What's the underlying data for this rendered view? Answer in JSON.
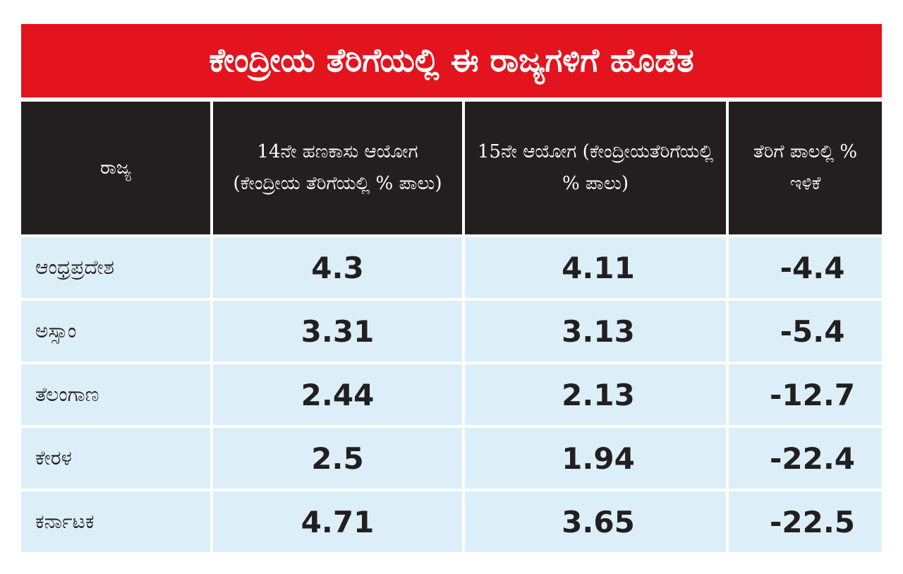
{
  "title": "ಕೇಂದ್ರೀಯ ತೆರಿಗೆಯಲ್ಲಿ ಈ ರಾಜ್ಯಗಳಿಗೆ ಹೊಡೆತ",
  "colors": {
    "title_bg": "#e3141e",
    "header_bg": "#231f20",
    "row_bg": "#dceff8"
  },
  "headers": [
    "ರಾಜ್ಯ",
    "14ನೇ ಹಣಕಾಸು ಆಯೋಗ (ಕೇಂದ್ರೀಯ ತೆರಿಗೆಯಲ್ಲಿ % ಪಾಲು)",
    "15ನೇ ಆಯೋಗ (ಕೇಂದ್ರೀಯತೆರಿಗೆಯಲ್ಲಿ % ಪಾಲು)",
    "ತೆರಿಗೆ ಪಾಲಲ್ಲಿ % ಇಳಿಕೆ"
  ],
  "rows": [
    [
      "ಆಂಧ್ರಪ್ರದೇಶ",
      "4.3",
      "4.11",
      "-4.4"
    ],
    [
      "ಅಸ್ಸಾಂ",
      "3.31",
      "3.13",
      "-5.4"
    ],
    [
      "ತೆಲಂಗಾಣ",
      "2.44",
      "2.13",
      "-12.7"
    ],
    [
      "ಕೇರಳ",
      "2.5",
      "1.94",
      "-22.4"
    ],
    [
      "ಕರ್ನಾಟಕ",
      "4.71",
      "3.65",
      "-22.5"
    ]
  ]
}
